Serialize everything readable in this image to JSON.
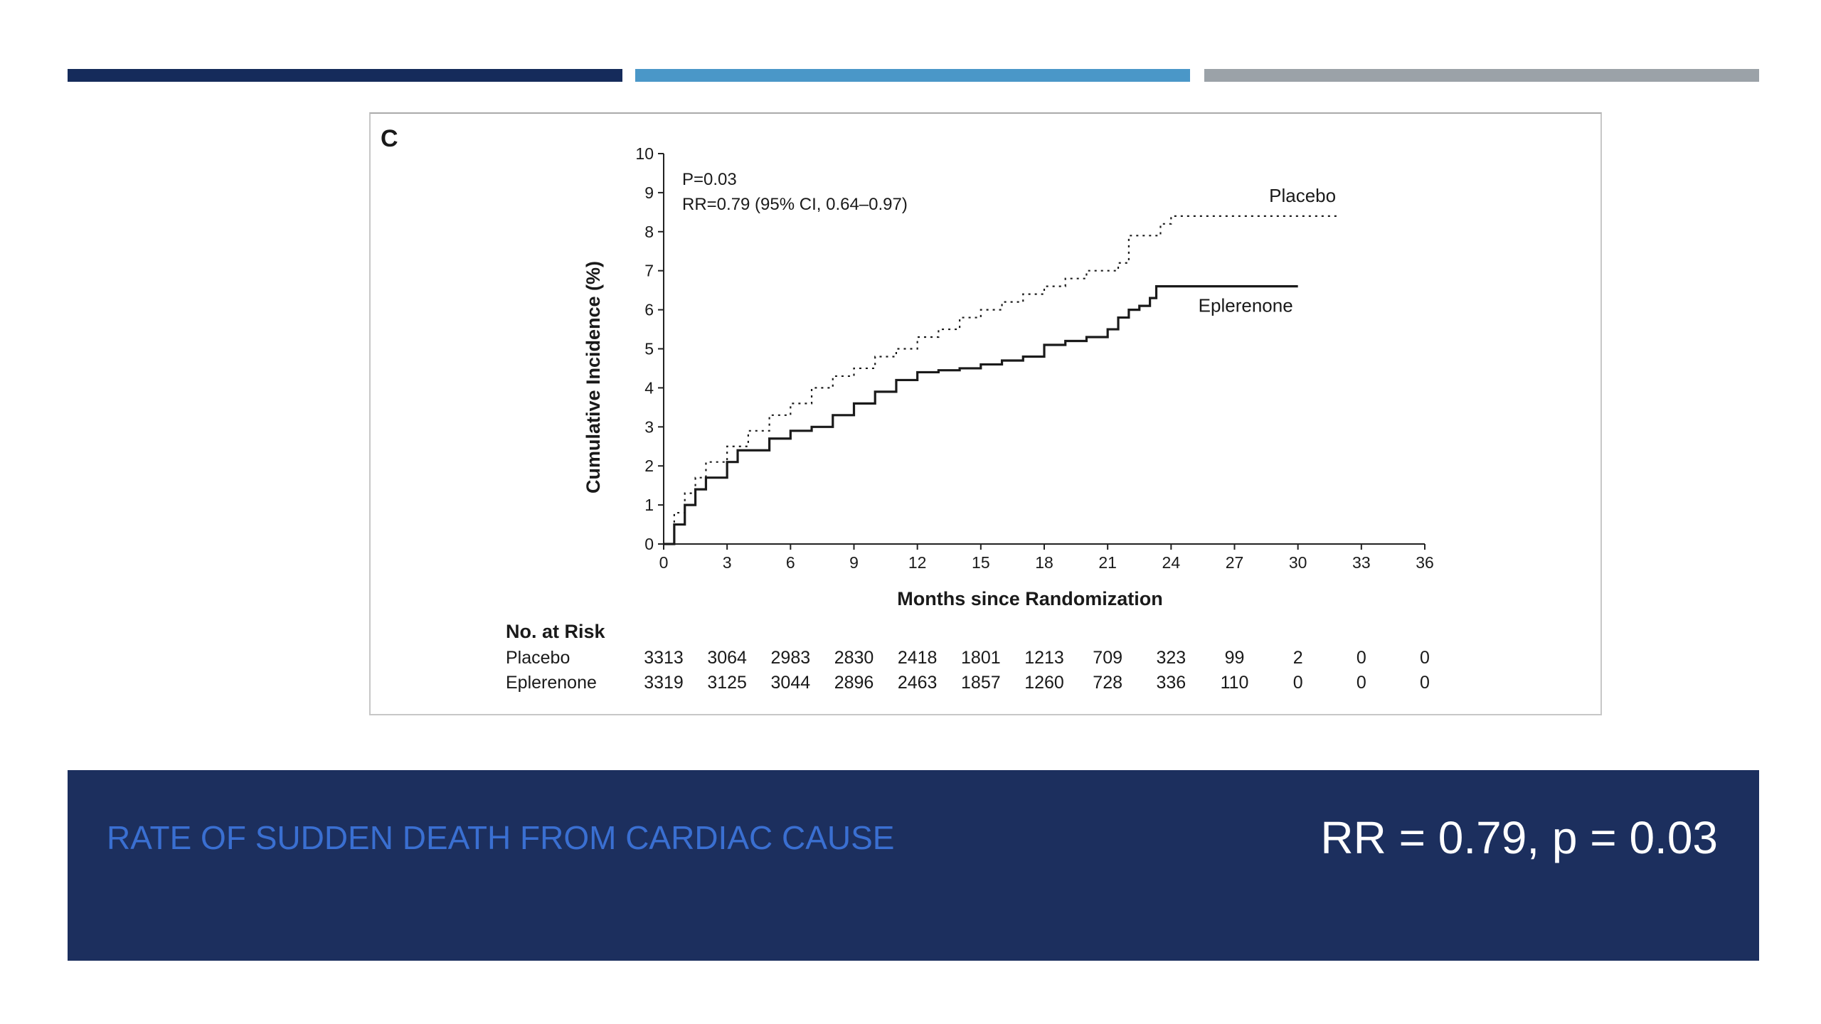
{
  "slide": {
    "title": "RATE OF SUDDEN DEATH FROM CARDIAC CAUSE",
    "stat": "RR = 0.79, p = 0.03",
    "colors": {
      "bar1": "#152b5b",
      "bar2": "#4a97c8",
      "bar3": "#9ba2a8",
      "panel": "#1c2f5e",
      "title": "#3a6fd1"
    }
  },
  "chart_data": {
    "type": "line",
    "panel_label": "C",
    "xlabel": "Months since Randomization",
    "ylabel": "Cumulative Incidence (%)",
    "xlim": [
      0,
      36
    ],
    "ylim": [
      0,
      10
    ],
    "xticks": [
      0,
      3,
      6,
      9,
      12,
      15,
      18,
      21,
      24,
      27,
      30,
      33,
      36
    ],
    "yticks": [
      0,
      1,
      2,
      3,
      4,
      5,
      6,
      7,
      8,
      9,
      10
    ],
    "annotations": [
      "P=0.03",
      "RR=0.79 (95% CI, 0.64–0.97)"
    ],
    "series": [
      {
        "name": "Placebo",
        "style": "dotted",
        "x": [
          0,
          0.5,
          1,
          1.5,
          2,
          3,
          4,
          5,
          6,
          7,
          8,
          9,
          10,
          11,
          12,
          13,
          14,
          15,
          16,
          17,
          18,
          19,
          20,
          21,
          21.5,
          22,
          22.5,
          23,
          23.5,
          24,
          25,
          27,
          30,
          32
        ],
        "y": [
          0,
          0.8,
          1.3,
          1.7,
          2.1,
          2.5,
          2.9,
          3.3,
          3.6,
          4.0,
          4.3,
          4.5,
          4.8,
          5.0,
          5.3,
          5.5,
          5.8,
          6.0,
          6.2,
          6.4,
          6.6,
          6.8,
          7.0,
          7.0,
          7.2,
          7.9,
          7.9,
          7.9,
          8.2,
          8.4,
          8.4,
          8.4,
          8.4,
          8.4
        ]
      },
      {
        "name": "Eplerenone",
        "style": "solid",
        "x": [
          0,
          0.5,
          1,
          1.5,
          2,
          3,
          3.5,
          4,
          5,
          6,
          7,
          8,
          9,
          10,
          11,
          12,
          13,
          14,
          15,
          16,
          17,
          18,
          19,
          20,
          21,
          21.5,
          22,
          22.5,
          23,
          23.3,
          24,
          26,
          28,
          30
        ],
        "y": [
          0,
          0.5,
          1.0,
          1.4,
          1.7,
          2.1,
          2.4,
          2.4,
          2.7,
          2.9,
          3.0,
          3.3,
          3.6,
          3.9,
          4.2,
          4.4,
          4.45,
          4.5,
          4.6,
          4.7,
          4.8,
          5.1,
          5.2,
          5.3,
          5.5,
          5.8,
          6.0,
          6.1,
          6.3,
          6.6,
          6.6,
          6.6,
          6.6,
          6.6
        ]
      }
    ],
    "risk_table": {
      "header": "No. at Risk",
      "rows": [
        {
          "label": "Placebo",
          "values": [
            "3313",
            "3064",
            "2983",
            "2830",
            "2418",
            "1801",
            "1213",
            "709",
            "323",
            "99",
            "2",
            "0",
            "0"
          ]
        },
        {
          "label": "Eplerenone",
          "values": [
            "3319",
            "3125",
            "3044",
            "2896",
            "2463",
            "1857",
            "1260",
            "728",
            "336",
            "110",
            "0",
            "0",
            "0"
          ]
        }
      ]
    }
  }
}
